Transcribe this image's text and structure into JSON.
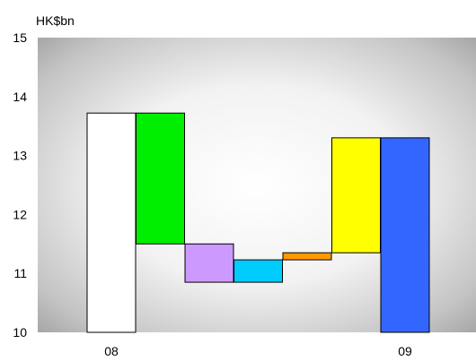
{
  "chart_data": {
    "type": "bar",
    "subtype": "waterfall",
    "unit_label": "HK$bn",
    "ylim": [
      10,
      15
    ],
    "y_ticks": [
      "10",
      "11",
      "12",
      "13",
      "14",
      "15"
    ],
    "x_ticks": [
      "08",
      "",
      "",
      "",
      "",
      "",
      "09"
    ],
    "grid": false,
    "background": "radial gradient, white centre to grey edges",
    "bars": [
      {
        "category": "08",
        "kind": "total",
        "base": 10.0,
        "top": 13.72,
        "color": "#ffffff"
      },
      {
        "category": "",
        "kind": "step",
        "base": 11.5,
        "top": 13.72,
        "color": "#00ee00"
      },
      {
        "category": "",
        "kind": "step",
        "base": 10.85,
        "top": 11.5,
        "color": "#cc99ff"
      },
      {
        "category": "",
        "kind": "step",
        "base": 10.85,
        "top": 11.23,
        "color": "#00ccff"
      },
      {
        "category": "",
        "kind": "step",
        "base": 11.23,
        "top": 11.35,
        "color": "#ff9900"
      },
      {
        "category": "",
        "kind": "step",
        "base": 11.35,
        "top": 13.3,
        "color": "#ffff00"
      },
      {
        "category": "09",
        "kind": "total",
        "base": 10.0,
        "top": 13.3,
        "color": "#3366ff"
      }
    ]
  }
}
